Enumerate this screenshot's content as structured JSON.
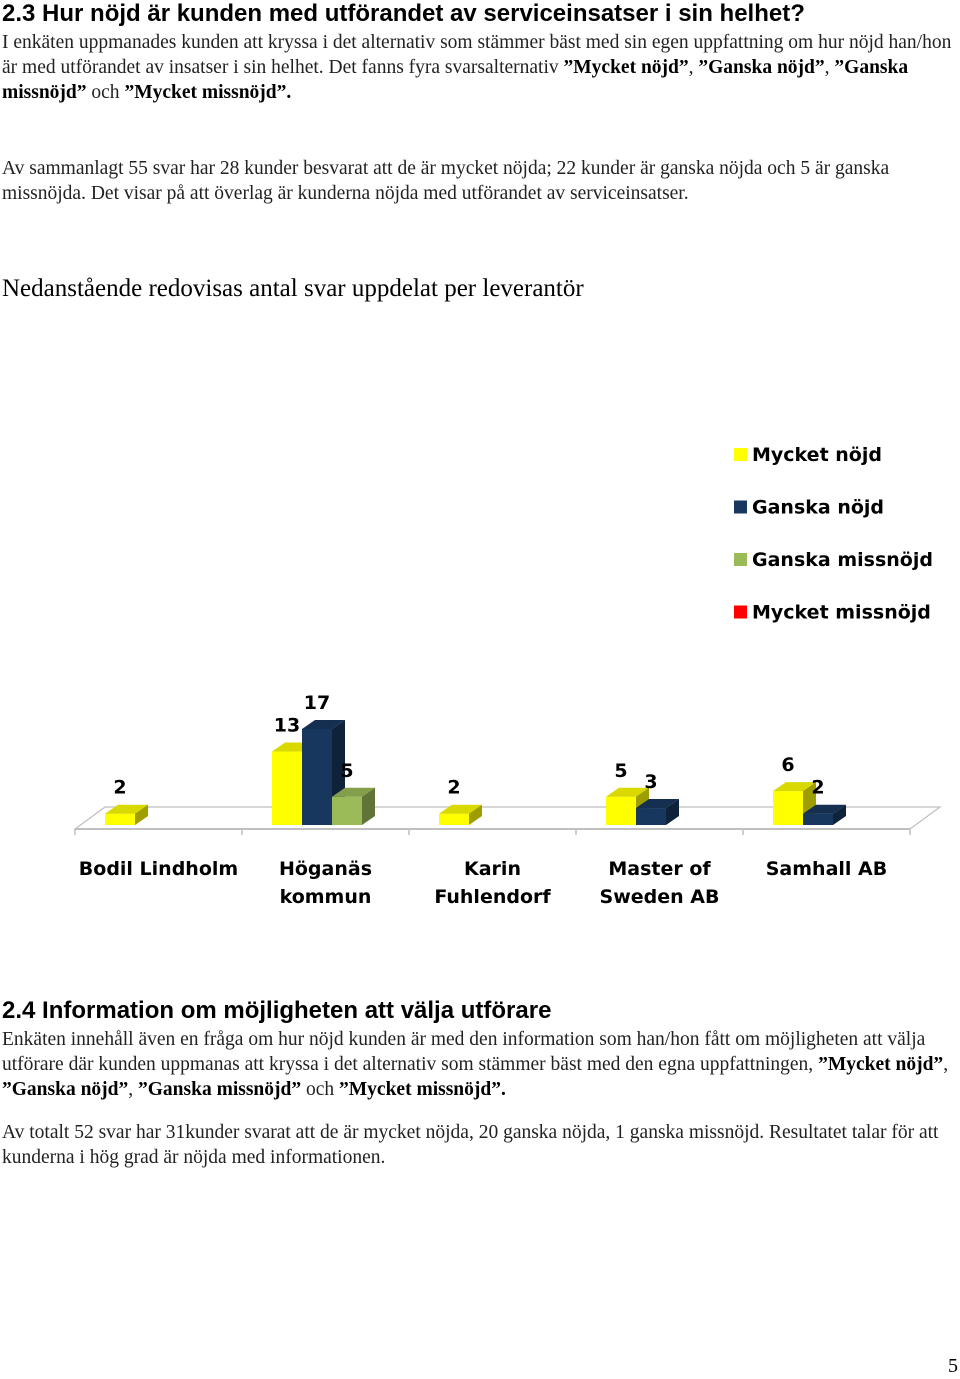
{
  "section_1": {
    "heading": "2.3 Hur nöjd är kunden med utförandet av serviceinsatser i sin helhet?",
    "paragraph_1": {
      "intro": "I enkäten uppmanades kunden att kryssa i det alternativ som stämmer bäst med sin egen uppfattning om hur nöjd han/hon är med utförandet av insatser i sin helhet. Det fanns fyra svarsalternativ ",
      "opt1": "”Mycket nöjd”",
      "sep1": ", ",
      "opt2": "”Ganska nöjd”",
      "sep2": ", ",
      "opt3": "”Ganska missnöjd”",
      "sep3": " och ",
      "opt4": "”Mycket missnöjd”."
    },
    "paragraph_2": "Av sammanlagt 55 svar har 28 kunder besvarat att de är mycket nöjda; 22 kunder är ganska nöjda och 5 är ganska missnöjda. Det visar på att överlag är kunderna nöjda med utförandet av serviceinsatser.",
    "subheading": "Nedanstående redovisas antal svar uppdelat per leverantör"
  },
  "chart_data": {
    "type": "bar",
    "categories": [
      [
        "Bodil Lindholm"
      ],
      [
        "Höganäs",
        "kommun"
      ],
      [
        "Karin",
        "Fuhlendorf"
      ],
      [
        "Master of",
        "Sweden AB"
      ],
      [
        "Samhall AB"
      ]
    ],
    "series": [
      {
        "name": "Mycket nöjd",
        "color": "#ffff00",
        "values": [
          2,
          13,
          2,
          5,
          6
        ]
      },
      {
        "name": "Ganska nöjd",
        "color": "#17375e",
        "values": [
          0,
          17,
          0,
          3,
          2
        ]
      },
      {
        "name": "Ganska missnöjd",
        "color": "#9bbb59",
        "values": [
          0,
          5,
          0,
          0,
          0
        ]
      },
      {
        "name": "Mycket missnöjd",
        "color": "#ff0000",
        "values": [
          0,
          0,
          0,
          0,
          0
        ]
      }
    ],
    "ylim": [
      0,
      17
    ],
    "legend_position": "right",
    "grid": false,
    "style": "3d-clustered-bar"
  },
  "section_2": {
    "heading": "2.4 Information om möjligheten att välja utförare",
    "paragraph_1": {
      "intro": "Enkäten innehåll även en fråga om hur nöjd kunden är med den information som han/hon fått om möjligheten att välja utförare där kunden uppmanas att kryssa i det alternativ som stämmer bäst med den egna uppfattningen, ",
      "opt1": "”Mycket nöjd”",
      "sep1": ", ",
      "opt2": "”Ganska nöjd”",
      "sep2": ", ",
      "opt3": "”Ganska missnöjd”",
      "sep3": " och ",
      "opt4": "”Mycket missnöjd”."
    },
    "paragraph_2": "Av totalt 52 svar har 31kunder svarat att de är mycket nöjda, 20 ganska nöjda, 1 ganska missnöjd. Resultatet talar för att kunderna i hög grad är nöjda med informationen."
  },
  "page_number": "5"
}
